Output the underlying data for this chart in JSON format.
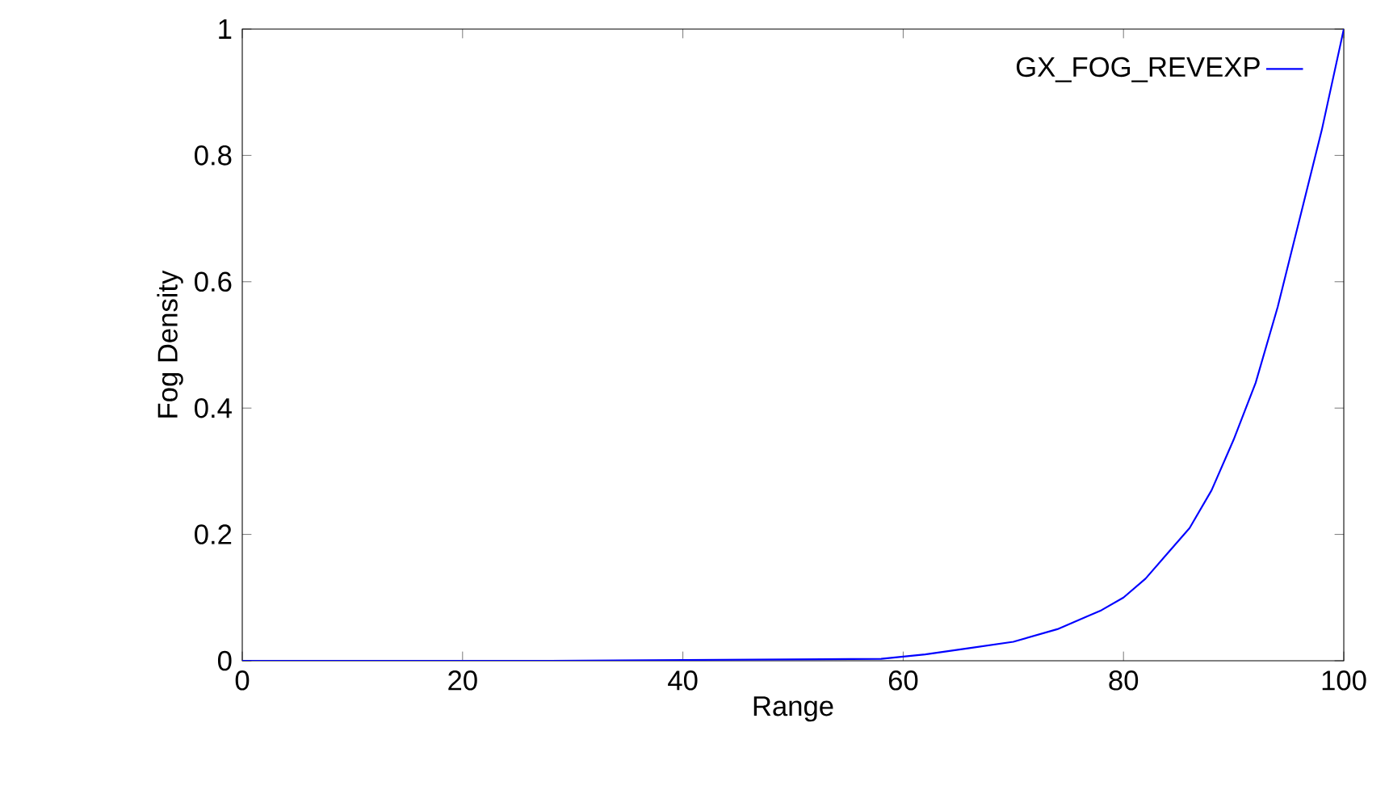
{
  "chart_data": {
    "type": "line",
    "xlabel": "Range",
    "ylabel": "Fog Density",
    "x": [
      0,
      28,
      58,
      62,
      66,
      70,
      74,
      78,
      80,
      82,
      84,
      86,
      88,
      90,
      92,
      94,
      96,
      98,
      100
    ],
    "series": [
      {
        "name": "GX_FOG_REVEXP",
        "color": "#0000ff",
        "values": [
          0,
          0,
          0.003,
          0.01,
          0.02,
          0.03,
          0.05,
          0.08,
          0.1,
          0.13,
          0.17,
          0.21,
          0.27,
          0.35,
          0.44,
          0.56,
          0.7,
          0.84,
          1
        ]
      }
    ],
    "xlim": [
      0,
      100
    ],
    "ylim": [
      0,
      1
    ],
    "xticks": [
      0,
      20,
      40,
      60,
      80,
      100
    ],
    "yticks": [
      0,
      0.2,
      0.4,
      0.6,
      0.8,
      1
    ],
    "legend": "top right",
    "grid": false
  }
}
